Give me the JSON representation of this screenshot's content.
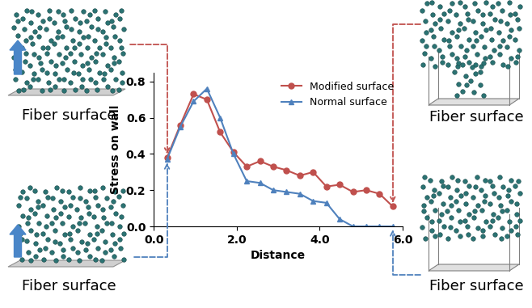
{
  "chart_data": {
    "type": "line",
    "x_label": "Distance",
    "y_label": "Stress on wall",
    "x": [
      0.32,
      0.64,
      0.96,
      1.28,
      1.6,
      1.92,
      2.24,
      2.56,
      2.88,
      3.2,
      3.52,
      3.84,
      4.16,
      4.48,
      4.8,
      5.12,
      5.44,
      5.76
    ],
    "series": [
      {
        "name": "Modified surface",
        "color": "#c0504d",
        "marker": "o",
        "line_style": "solid",
        "values": [
          0.38,
          0.56,
          0.73,
          0.7,
          0.52,
          0.41,
          0.33,
          0.36,
          0.33,
          0.31,
          0.28,
          0.3,
          0.22,
          0.23,
          0.19,
          0.2,
          0.18,
          0.11
        ]
      },
      {
        "name": "Normal surface",
        "color": "#4f81bd",
        "marker": "^",
        "line_style": "solid",
        "values": [
          0.37,
          0.55,
          0.69,
          0.76,
          0.6,
          0.4,
          0.25,
          0.24,
          0.2,
          0.19,
          0.18,
          0.14,
          0.13,
          0.04,
          0.0,
          0.0,
          0.0,
          0.0
        ]
      }
    ],
    "xlim": [
      0,
      6.0
    ],
    "xticks": [
      {
        "value": 0,
        "label": "0.0"
      },
      {
        "value": 2,
        "label": "2.0"
      },
      {
        "value": 4,
        "label": "4.0"
      },
      {
        "value": 6,
        "label": "6.0"
      }
    ],
    "ylim": [
      0,
      0.85
    ],
    "yticks": [
      {
        "value": 0,
        "label": "0.0"
      },
      {
        "value": 0.2,
        "label": "0.2"
      },
      {
        "value": 0.4,
        "label": "0.4"
      },
      {
        "value": 0.6,
        "label": "0.6"
      },
      {
        "value": 0.8,
        "label": "0.8"
      }
    ],
    "grid": false,
    "legend": "upper right",
    "annotations": [
      "Fiber surface",
      "Fiber surface",
      "Fiber surface",
      "Fiber surface"
    ]
  }
}
